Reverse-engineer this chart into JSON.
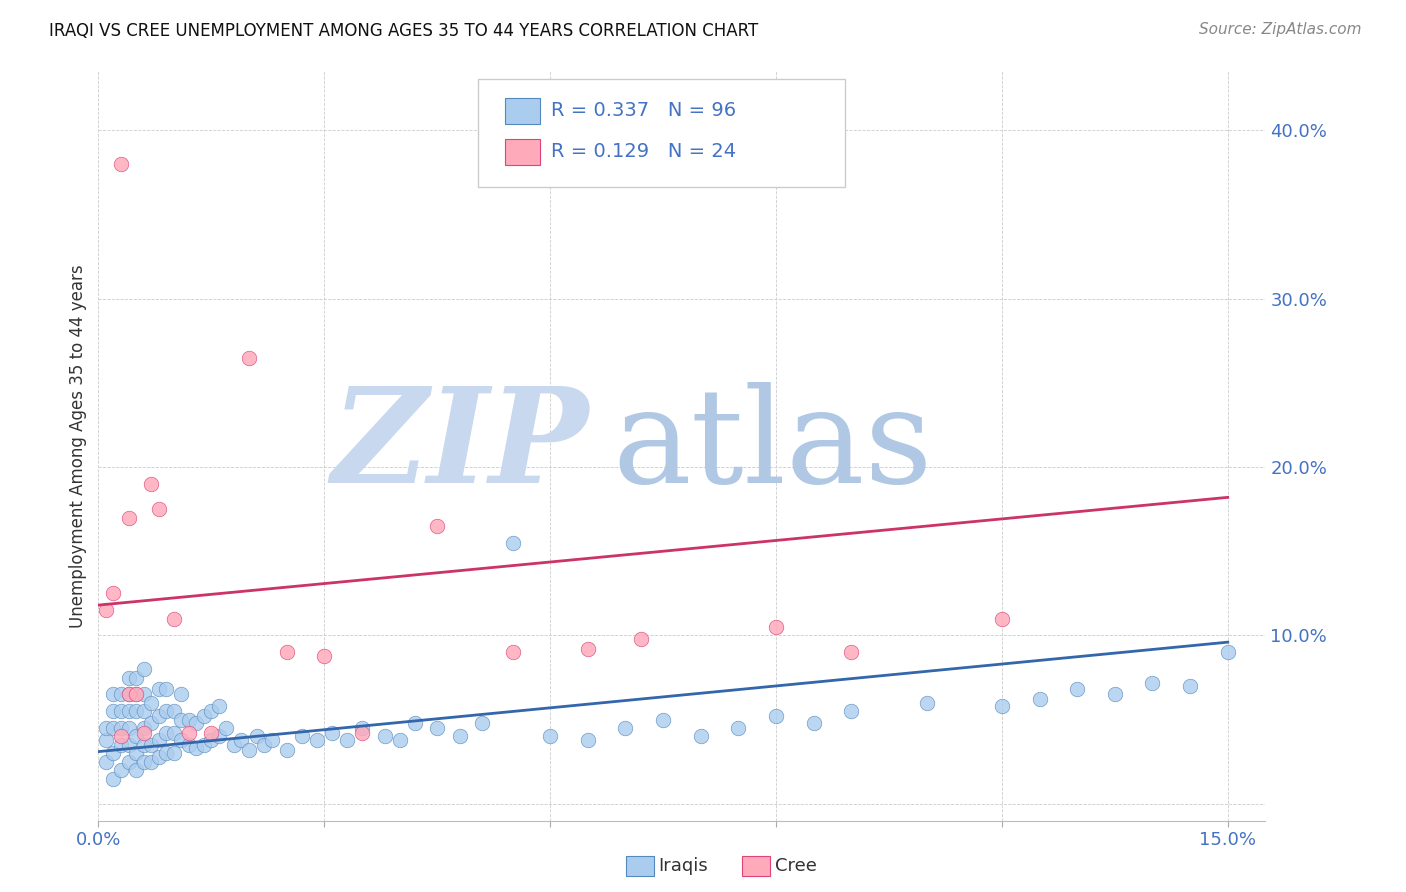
{
  "title": "IRAQI VS CREE UNEMPLOYMENT AMONG AGES 35 TO 44 YEARS CORRELATION CHART",
  "source": "Source: ZipAtlas.com",
  "ylabel": "Unemployment Among Ages 35 to 44 years",
  "xlim": [
    0.0,
    0.155
  ],
  "ylim": [
    -0.01,
    0.435
  ],
  "xtick_positions": [
    0.0,
    0.03,
    0.06,
    0.09,
    0.12,
    0.15
  ],
  "xticklabels": [
    "0.0%",
    "",
    "",
    "",
    "",
    "15.0%"
  ],
  "ytick_positions": [
    0.0,
    0.1,
    0.2,
    0.3,
    0.4
  ],
  "yticklabels": [
    "",
    "10.0%",
    "20.0%",
    "30.0%",
    "40.0%"
  ],
  "iraqis_scatter_color": "#aaccee",
  "iraqis_scatter_edge": "#5588bb",
  "cree_scatter_color": "#ffaabb",
  "cree_scatter_edge": "#dd4477",
  "iraqis_line_color": "#3366aa",
  "cree_line_color": "#cc3366",
  "iraqis_label": "Iraqis",
  "cree_label": "Cree",
  "legend_text_color": "#4472c4",
  "tick_color": "#4472c4",
  "title_color": "#111111",
  "source_color": "#888888",
  "ylabel_color": "#333333",
  "watermark_zip_color": "#c8d8ee",
  "watermark_atlas_color": "#b0c8e4",
  "grid_color": "#cccccc",
  "iraqis_trend_x": [
    0.0,
    0.15
  ],
  "iraqis_trend_y": [
    0.031,
    0.096
  ],
  "cree_trend_x": [
    0.0,
    0.15
  ],
  "cree_trend_y": [
    0.118,
    0.182
  ],
  "iraqis_x": [
    0.001,
    0.001,
    0.001,
    0.002,
    0.002,
    0.002,
    0.002,
    0.002,
    0.003,
    0.003,
    0.003,
    0.003,
    0.003,
    0.004,
    0.004,
    0.004,
    0.004,
    0.004,
    0.004,
    0.005,
    0.005,
    0.005,
    0.005,
    0.005,
    0.005,
    0.006,
    0.006,
    0.006,
    0.006,
    0.006,
    0.006,
    0.007,
    0.007,
    0.007,
    0.007,
    0.008,
    0.008,
    0.008,
    0.008,
    0.009,
    0.009,
    0.009,
    0.009,
    0.01,
    0.01,
    0.01,
    0.011,
    0.011,
    0.011,
    0.012,
    0.012,
    0.013,
    0.013,
    0.014,
    0.014,
    0.015,
    0.015,
    0.016,
    0.016,
    0.017,
    0.018,
    0.019,
    0.02,
    0.021,
    0.022,
    0.023,
    0.025,
    0.027,
    0.029,
    0.031,
    0.033,
    0.035,
    0.038,
    0.04,
    0.042,
    0.045,
    0.048,
    0.051,
    0.055,
    0.06,
    0.065,
    0.07,
    0.075,
    0.08,
    0.085,
    0.09,
    0.095,
    0.1,
    0.11,
    0.12,
    0.125,
    0.13,
    0.135,
    0.14,
    0.145,
    0.15
  ],
  "iraqis_y": [
    0.038,
    0.025,
    0.045,
    0.015,
    0.03,
    0.045,
    0.055,
    0.065,
    0.02,
    0.035,
    0.045,
    0.055,
    0.065,
    0.025,
    0.035,
    0.045,
    0.055,
    0.065,
    0.075,
    0.02,
    0.03,
    0.04,
    0.055,
    0.065,
    0.075,
    0.025,
    0.035,
    0.045,
    0.055,
    0.065,
    0.08,
    0.025,
    0.035,
    0.048,
    0.06,
    0.028,
    0.038,
    0.052,
    0.068,
    0.03,
    0.042,
    0.055,
    0.068,
    0.03,
    0.042,
    0.055,
    0.038,
    0.05,
    0.065,
    0.035,
    0.05,
    0.033,
    0.048,
    0.035,
    0.052,
    0.038,
    0.055,
    0.04,
    0.058,
    0.045,
    0.035,
    0.038,
    0.032,
    0.04,
    0.035,
    0.038,
    0.032,
    0.04,
    0.038,
    0.042,
    0.038,
    0.045,
    0.04,
    0.038,
    0.048,
    0.045,
    0.04,
    0.048,
    0.155,
    0.04,
    0.038,
    0.045,
    0.05,
    0.04,
    0.045,
    0.052,
    0.048,
    0.055,
    0.06,
    0.058,
    0.062,
    0.068,
    0.065,
    0.072,
    0.07,
    0.09
  ],
  "cree_x": [
    0.001,
    0.002,
    0.003,
    0.003,
    0.004,
    0.004,
    0.005,
    0.006,
    0.007,
    0.008,
    0.01,
    0.012,
    0.015,
    0.02,
    0.025,
    0.03,
    0.035,
    0.045,
    0.055,
    0.065,
    0.072,
    0.09,
    0.1,
    0.12
  ],
  "cree_y": [
    0.115,
    0.125,
    0.38,
    0.04,
    0.065,
    0.17,
    0.065,
    0.042,
    0.19,
    0.175,
    0.11,
    0.042,
    0.042,
    0.265,
    0.09,
    0.088,
    0.042,
    0.165,
    0.09,
    0.092,
    0.098,
    0.105,
    0.09,
    0.11
  ]
}
